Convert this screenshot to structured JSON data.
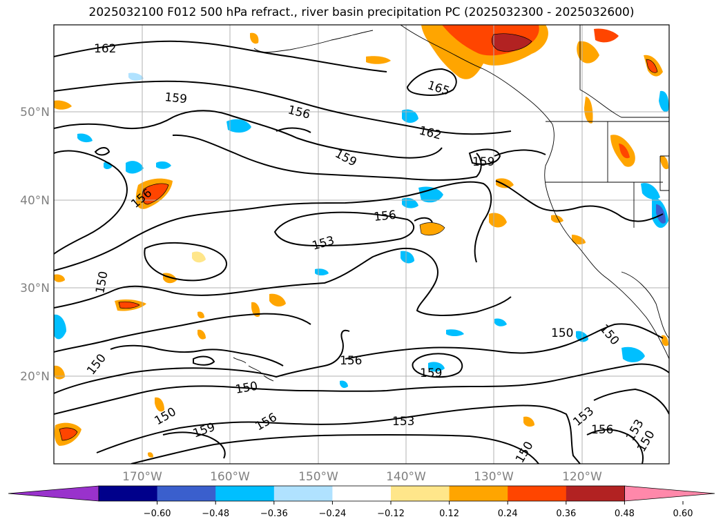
{
  "title": "2025032100 F012 500 hPa refract., river basin precipitation PC (2025032300 - 2025032600)",
  "lat_labels": [
    "50°N",
    "40°N",
    "30°N",
    "20°N"
  ],
  "lon_labels": [
    "170°W",
    "160°W",
    "150°W",
    "140°W",
    "130°W",
    "120°W"
  ],
  "contour_labels": [
    "162",
    "159",
    "156",
    "165",
    "162",
    "159",
    "159",
    "156",
    "156",
    "153",
    "150",
    "150",
    "150",
    "150",
    "150",
    "156",
    "159",
    "153",
    "150",
    "153",
    "156",
    "153",
    "150",
    "159",
    "156",
    "150"
  ],
  "colorbar": {
    "ticks": [
      "−0.60",
      "−0.48",
      "−0.36",
      "−0.24",
      "−0.12",
      "0.12",
      "0.24",
      "0.36",
      "0.48",
      "0.60"
    ],
    "colors": [
      "#9932cc",
      "#00008b",
      "#3a5fcd",
      "#00bfff",
      "#b0e2ff",
      "#ffffff",
      "#ffe68a",
      "#ffa500",
      "#ff4500",
      "#b22222",
      "#ff88aa"
    ]
  }
}
